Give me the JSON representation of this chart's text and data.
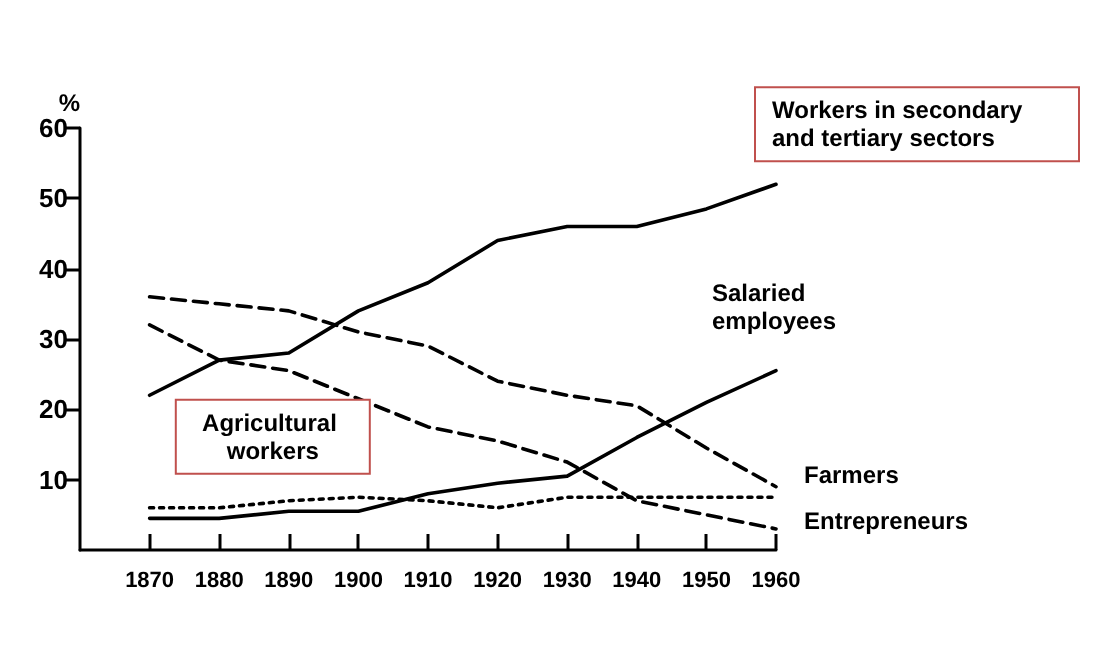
{
  "chart_data": {
    "type": "line",
    "ylabel": "%",
    "x": [
      1870,
      1880,
      1890,
      1900,
      1910,
      1920,
      1930,
      1940,
      1950,
      1960
    ],
    "xlim": [
      1860,
      1960
    ],
    "xticks": [
      1870,
      1880,
      1890,
      1900,
      1910,
      1920,
      1930,
      1940,
      1950,
      1960
    ],
    "ylim": [
      0,
      60
    ],
    "yticks": [
      10,
      20,
      30,
      40,
      50,
      60
    ],
    "grid": false,
    "legend": false,
    "marker": "none",
    "series": [
      {
        "name": "Workers in secondary and tertiary sectors",
        "color": "#000000",
        "line_style": "solid",
        "values": [
          22,
          27,
          28,
          34,
          38,
          44,
          46,
          46,
          48.5,
          52
        ]
      },
      {
        "name": "Salaried employees",
        "color": "#000000",
        "line_style": "solid",
        "values": [
          4.5,
          4.5,
          5.5,
          5.5,
          8,
          9.5,
          10.5,
          16,
          21,
          25.5
        ]
      },
      {
        "name": "Farmers",
        "color": "#000000",
        "line_style": "dashed",
        "values": [
          36,
          35,
          34,
          31,
          29,
          24,
          22,
          20.5,
          14.5,
          9
        ]
      },
      {
        "name": "Entrepreneurs",
        "color": "#000000",
        "line_style": "dotted",
        "values": [
          6,
          6,
          7,
          7.5,
          7,
          6,
          7.5,
          7.5,
          7.5,
          7.5
        ]
      },
      {
        "name": "Agricultural workers",
        "color": "#000000",
        "line_style": "dashed",
        "values": [
          32,
          27,
          25.5,
          21.5,
          17.5,
          15.5,
          12.5,
          7,
          5,
          3
        ]
      }
    ]
  }
}
